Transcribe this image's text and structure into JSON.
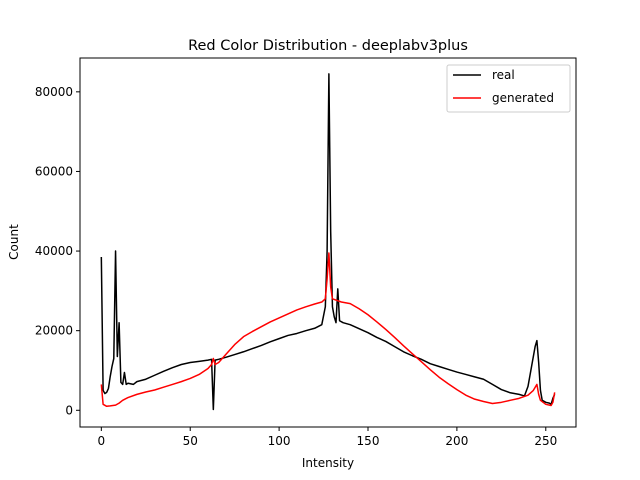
{
  "chart_data": {
    "type": "line",
    "title": "Red Color Distribution - deeplabv3plus",
    "xlabel": "Intensity",
    "ylabel": "Count",
    "xlim": [
      -12,
      267
    ],
    "ylim": [
      -4200,
      88500
    ],
    "xticks": [
      0,
      50,
      100,
      150,
      200,
      250
    ],
    "yticks": [
      0,
      20000,
      40000,
      60000,
      80000
    ],
    "legend_position": "upper right",
    "grid": false,
    "series": [
      {
        "name": "real",
        "color": "#000000",
        "points": [
          [
            0,
            38500
          ],
          [
            1,
            5000
          ],
          [
            2,
            4200
          ],
          [
            3,
            4500
          ],
          [
            4,
            5500
          ],
          [
            5,
            8500
          ],
          [
            6,
            11000
          ],
          [
            7,
            13000
          ],
          [
            8,
            40000
          ],
          [
            9,
            13500
          ],
          [
            10,
            22000
          ],
          [
            11,
            7000
          ],
          [
            12,
            6500
          ],
          [
            13,
            9500
          ],
          [
            14,
            6500
          ],
          [
            15,
            6800
          ],
          [
            18,
            6500
          ],
          [
            20,
            7200
          ],
          [
            25,
            7800
          ],
          [
            30,
            8800
          ],
          [
            35,
            9800
          ],
          [
            40,
            10700
          ],
          [
            45,
            11500
          ],
          [
            50,
            12000
          ],
          [
            55,
            12300
          ],
          [
            60,
            12600
          ],
          [
            62,
            12800
          ],
          [
            63,
            200
          ],
          [
            64,
            12600
          ],
          [
            66,
            12800
          ],
          [
            70,
            13300
          ],
          [
            75,
            14000
          ],
          [
            80,
            14700
          ],
          [
            85,
            15500
          ],
          [
            90,
            16300
          ],
          [
            95,
            17200
          ],
          [
            100,
            18000
          ],
          [
            105,
            18800
          ],
          [
            110,
            19300
          ],
          [
            115,
            20000
          ],
          [
            120,
            20600
          ],
          [
            124,
            21500
          ],
          [
            126,
            26000
          ],
          [
            127,
            40000
          ],
          [
            128,
            84500
          ],
          [
            129,
            45000
          ],
          [
            130,
            26000
          ],
          [
            131,
            23500
          ],
          [
            132,
            22000
          ],
          [
            133,
            30500
          ],
          [
            134,
            22500
          ],
          [
            136,
            22000
          ],
          [
            140,
            21500
          ],
          [
            145,
            20500
          ],
          [
            150,
            19500
          ],
          [
            155,
            18300
          ],
          [
            160,
            17300
          ],
          [
            165,
            16000
          ],
          [
            170,
            14700
          ],
          [
            175,
            13700
          ],
          [
            180,
            12800
          ],
          [
            185,
            11700
          ],
          [
            190,
            11000
          ],
          [
            195,
            10300
          ],
          [
            200,
            9600
          ],
          [
            205,
            9000
          ],
          [
            210,
            8400
          ],
          [
            215,
            7800
          ],
          [
            220,
            6500
          ],
          [
            225,
            5200
          ],
          [
            230,
            4400
          ],
          [
            235,
            4000
          ],
          [
            238,
            3600
          ],
          [
            240,
            6000
          ],
          [
            242,
            11000
          ],
          [
            244,
            16000
          ],
          [
            245,
            17500
          ],
          [
            246,
            12000
          ],
          [
            247,
            5000
          ],
          [
            248,
            2500
          ],
          [
            250,
            2000
          ],
          [
            252,
            1800
          ],
          [
            253,
            1500
          ],
          [
            254,
            3000
          ],
          [
            255,
            4000
          ]
        ]
      },
      {
        "name": "generated",
        "color": "#ff0000",
        "points": [
          [
            0,
            6500
          ],
          [
            1,
            1500
          ],
          [
            3,
            1000
          ],
          [
            5,
            1100
          ],
          [
            8,
            1300
          ],
          [
            10,
            1800
          ],
          [
            12,
            2500
          ],
          [
            15,
            3200
          ],
          [
            20,
            4000
          ],
          [
            25,
            4600
          ],
          [
            30,
            5100
          ],
          [
            35,
            5800
          ],
          [
            40,
            6500
          ],
          [
            45,
            7200
          ],
          [
            50,
            8000
          ],
          [
            55,
            9000
          ],
          [
            60,
            10500
          ],
          [
            62,
            11500
          ],
          [
            63,
            13000
          ],
          [
            64,
            11500
          ],
          [
            66,
            12000
          ],
          [
            70,
            14000
          ],
          [
            75,
            16500
          ],
          [
            80,
            18500
          ],
          [
            85,
            19800
          ],
          [
            90,
            21000
          ],
          [
            95,
            22200
          ],
          [
            100,
            23200
          ],
          [
            105,
            24200
          ],
          [
            110,
            25200
          ],
          [
            115,
            26000
          ],
          [
            120,
            26700
          ],
          [
            124,
            27200
          ],
          [
            126,
            28000
          ],
          [
            127,
            33000
          ],
          [
            128,
            39500
          ],
          [
            129,
            31000
          ],
          [
            130,
            28000
          ],
          [
            135,
            27200
          ],
          [
            140,
            26800
          ],
          [
            145,
            25500
          ],
          [
            150,
            24000
          ],
          [
            155,
            22200
          ],
          [
            160,
            20300
          ],
          [
            165,
            18300
          ],
          [
            170,
            16200
          ],
          [
            175,
            14200
          ],
          [
            180,
            12200
          ],
          [
            185,
            10200
          ],
          [
            190,
            8300
          ],
          [
            195,
            6700
          ],
          [
            200,
            5200
          ],
          [
            205,
            3800
          ],
          [
            210,
            2800
          ],
          [
            215,
            2200
          ],
          [
            220,
            1700
          ],
          [
            225,
            2000
          ],
          [
            230,
            2500
          ],
          [
            235,
            3000
          ],
          [
            240,
            3800
          ],
          [
            243,
            5000
          ],
          [
            245,
            6500
          ],
          [
            246,
            4000
          ],
          [
            247,
            2500
          ],
          [
            250,
            1500
          ],
          [
            253,
            1200
          ],
          [
            254,
            2000
          ],
          [
            255,
            4500
          ]
        ]
      }
    ]
  }
}
